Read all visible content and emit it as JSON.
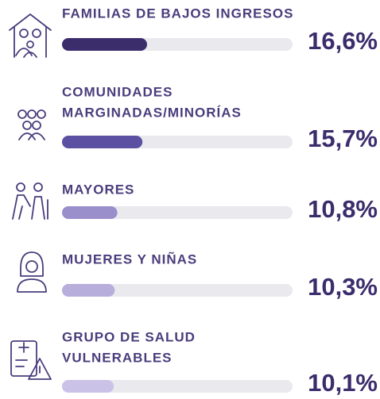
{
  "chart_data": {
    "type": "hbar",
    "categories": [
      [
        "FAMILIAS DE BAJOS INGRESOS"
      ],
      [
        "COMUNIDADES",
        "MARGINADAS/MINORÍAS"
      ],
      [
        "MAYORES"
      ],
      [
        "MUJERES Y NIÑAS"
      ],
      [
        "GRUPO DE SALUD",
        "VULNERABLES"
      ]
    ],
    "values": [
      16.6,
      15.7,
      10.8,
      10.3,
      10.1
    ],
    "value_labels": [
      "16,6%",
      "15,7%",
      "10,8%",
      "10,3%",
      "10,1%"
    ],
    "colors": [
      "#3b2c6c",
      "#5b50a2",
      "#9a8ecb",
      "#b7aedb",
      "#cbc3e7"
    ],
    "xlim": [
      0,
      45
    ]
  }
}
